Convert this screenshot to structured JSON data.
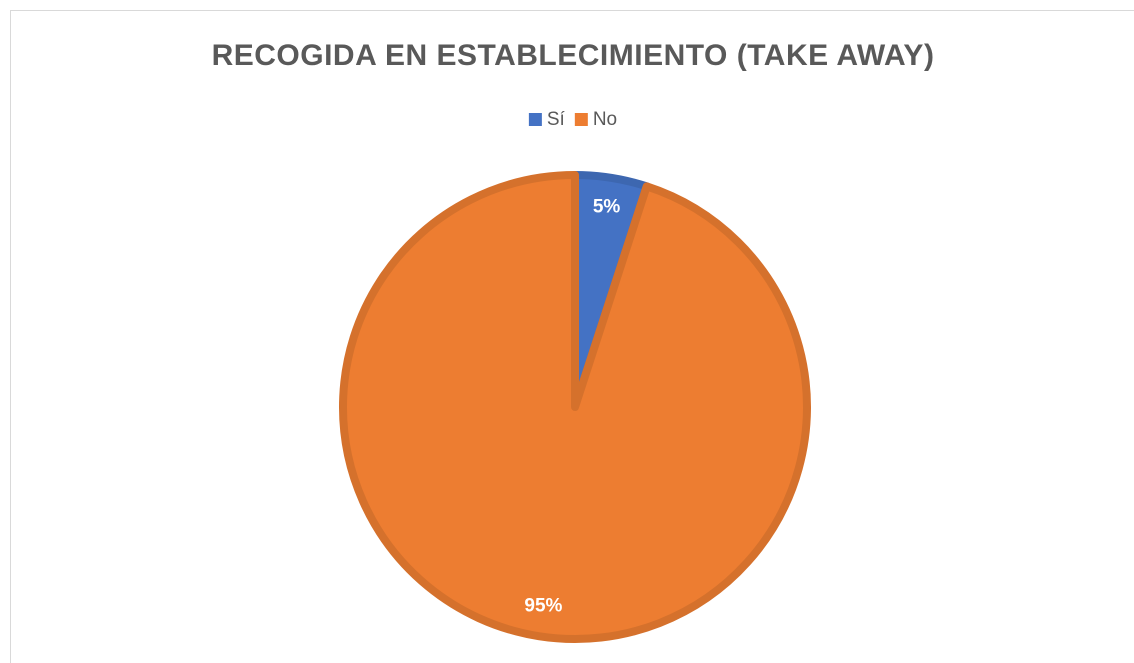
{
  "chart_data": {
    "type": "pie",
    "title": "RECOGIDA EN ESTABLECIMIENTO (TAKE AWAY)",
    "categories": [
      "Sí",
      "No"
    ],
    "values": [
      5,
      95
    ],
    "value_labels": [
      "5%",
      "95%"
    ],
    "colors": [
      "#4472C4",
      "#ED7D31"
    ],
    "legend": "top"
  }
}
